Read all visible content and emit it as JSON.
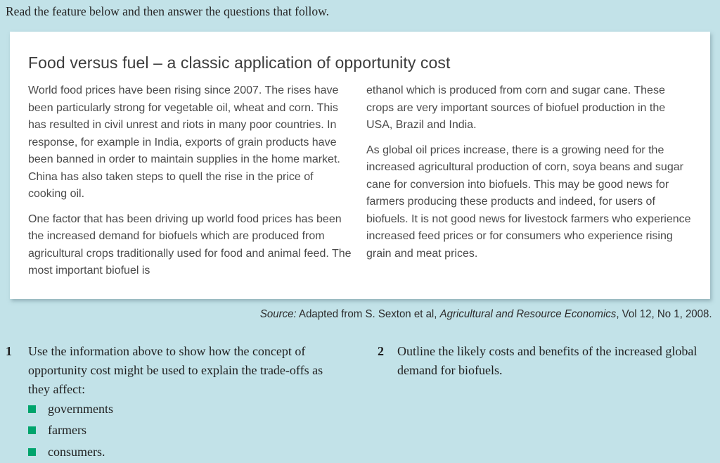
{
  "page": {
    "instruction": "Read the feature below and then answer the questions that follow."
  },
  "feature": {
    "title": "Food versus fuel – a classic application of opportunity cost",
    "columns": {
      "left": [
        "World food prices have been rising since 2007. The rises have been particularly strong for vegetable oil, wheat and corn. This has resulted in civil unrest and riots in many poor countries. In response, for example in India, exports of grain products have been banned in order to maintain supplies in the home market. China has also taken steps to quell the rise in the price of cooking oil.",
        "One factor that has been driving up world food prices has been the increased demand for biofuels which are produced from agricultural crops traditionally used for food and animal feed. The most important biofuel is"
      ],
      "right": [
        "ethanol which is produced from corn and sugar cane. These crops are very important sources of biofuel production in the USA, Brazil and India.",
        "As global oil prices increase, there is a growing need for the increased agricultural production of corn, soya beans and sugar cane for conversion into biofuels. This may be good news for farmers producing these products and indeed, for users of biofuels. It is not good news for livestock farmers who experience increased feed prices or for consumers who experience rising grain and meat prices."
      ]
    }
  },
  "source": {
    "label": "Source:",
    "before_journal": " Adapted from S. Sexton et al, ",
    "journal": "Agricultural and Resource Economics",
    "after_journal": ", Vol 12, No 1, 2008."
  },
  "questions": [
    {
      "number": "1",
      "text": "Use the information above to show how the concept of opportunity cost might be used to explain the trade-offs as they affect:",
      "bullets": [
        "governments",
        "farmers",
        "consumers."
      ]
    },
    {
      "number": "2",
      "text": "Outline the likely costs and benefits of the increased global demand for biofuels."
    }
  ],
  "colors": {
    "background": "#c2e2e8",
    "card": "#ffffff",
    "bullet_green": "#00a46c",
    "body_text": "#4a4a4a",
    "serif_text": "#1f1f1f"
  }
}
